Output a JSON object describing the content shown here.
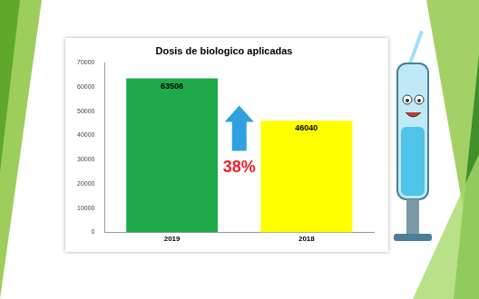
{
  "chart_data": {
    "type": "bar",
    "title": "Dosis de biologico aplicadas",
    "categories": [
      "2019",
      "2018"
    ],
    "values": [
      63506,
      46040
    ],
    "colors": [
      "#1faa4a",
      "#ffff00"
    ],
    "ylim": [
      0,
      70000
    ],
    "yticks": [
      0,
      10000,
      20000,
      30000,
      40000,
      50000,
      60000,
      70000
    ],
    "grid": false,
    "data_labels": true,
    "annotation": "38%"
  }
}
